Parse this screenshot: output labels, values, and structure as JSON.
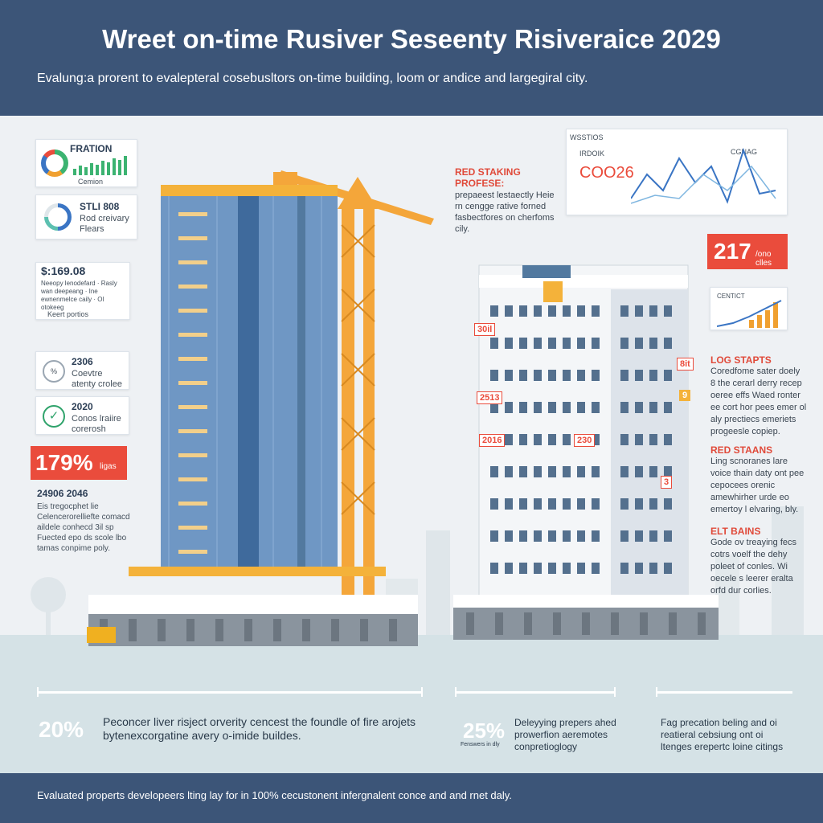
{
  "header": {
    "title": "Wreet on-time Rusiver Seseenty Risiveraice 2029",
    "subtitle": "Evalung:a prorent to evalepteral cosebusltors on-time building, loom or andice and largegiral city."
  },
  "left_cards": [
    {
      "title": "FRATION",
      "text": "Cemion"
    },
    {
      "title": "STLI 808",
      "text": "Rod creivary Flears"
    },
    {
      "title": "$:169.08",
      "text": "Neeopy lenodefard · Rasly wan deepeang · Ine ewnenmelce caily · Ol otokeeg",
      "footer": "Keert portios"
    },
    {
      "title": "2306",
      "text": "Coevtre atenty crolee"
    },
    {
      "title": "2020",
      "text": "Conos lraiire corerosh"
    }
  ],
  "left_badge": {
    "big": "179%",
    "small": "ligas"
  },
  "left_note": {
    "title": "24906 2046",
    "text": "Eis tregocphet lie Celencerorelliefte comacd aildele conhecd 3il sp Fuected epo ds scole lbo tamas conpime poly."
  },
  "right_top": {
    "title": "RED STAKING PROFESE:",
    "text": "prepaeest lestaectly Heie rn cengge rative forned fasbectfores on cherfoms cily."
  },
  "dashboard": {
    "label": "WSSTIOS",
    "tag1": "IRDOIK",
    "value": "COO26",
    "tag2": "CGNAG"
  },
  "right_badge": {
    "big": "217",
    "small": "/ono clles"
  },
  "right_chart_label": "CENTICT",
  "building_tags": [
    "30il",
    "2513",
    "2016",
    "8it",
    "9",
    "230",
    "3"
  ],
  "side_sections": [
    {
      "title": "LOG STAPTS",
      "text": "Coredfome sater doely 8 the cerarl derry recep oeree effs Waed ronter ee cort hor pees emer ol aly prectiecs emeriets progeesle copiep."
    },
    {
      "title": "RED STAANS",
      "text": "Ling scnoranes lare voice thain daty ont pee cepocees orenic amewhirher urde eo emertoy l elvaring, bly."
    },
    {
      "title": "ELT BAINS",
      "text": "Gode ov treaying fecs cotrs voelf the dehy poleet of conles. Wi oecele s leerer eralta orfd dur corlies."
    }
  ],
  "stats": [
    {
      "value": "20%",
      "text": "Peconcer liver risject orverity cencest the foundle of fire arojets bytenexcorgatine avery o-imide buildes."
    },
    {
      "value": "25%",
      "small": "Fenswers in dly",
      "text": "Deleyying prepers ahed prowerfion aeremotes conpretioglogy"
    },
    {
      "value": "",
      "text": "Fag precation beling and oi reatieral cebsiung ont oi ltenges erepertc loine citings"
    }
  ],
  "footer": {
    "text": "Evaluated properts developeers lting lay for in 100% cecustonent infergnalent conce and and rnet daly."
  },
  "colors": {
    "header": "#3c5578",
    "accent_red": "#ea4c3c",
    "crane": "#f4a63a",
    "glass": "#6f97c4"
  }
}
